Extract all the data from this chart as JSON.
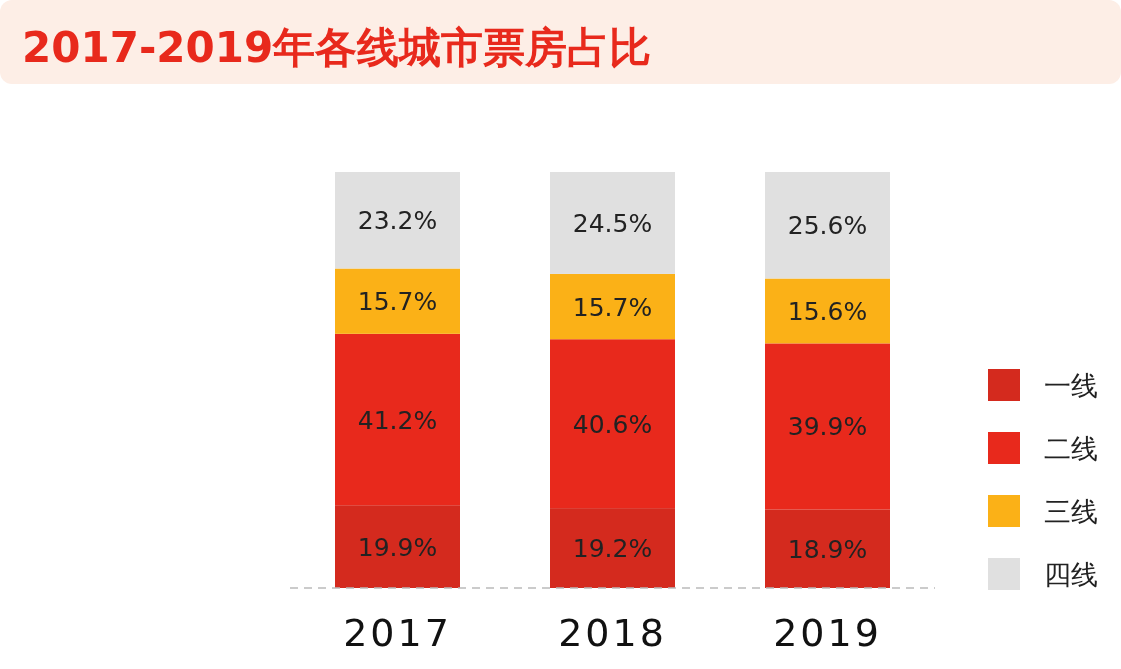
{
  "chart_data": {
    "type": "bar",
    "title": "2017-2019年各线城市票房占比",
    "stacked": true,
    "categories": [
      "2017",
      "2018",
      "2019"
    ],
    "legend": "right",
    "series": [
      {
        "name": "一线",
        "color": "#d42a1e",
        "values": [
          19.9,
          19.2,
          18.9
        ],
        "value_labels": [
          "19.9%",
          "19.2%",
          "18.9%"
        ]
      },
      {
        "name": "二线",
        "color": "#e8291c",
        "values": [
          41.2,
          40.6,
          39.9
        ],
        "value_labels": [
          "41.2%",
          "40.6%",
          "39.9%"
        ]
      },
      {
        "name": "三线",
        "color": "#fbb117",
        "values": [
          15.7,
          15.7,
          15.6
        ],
        "value_labels": [
          "15.7%",
          "15.7%",
          "15.6%"
        ]
      },
      {
        "name": "四线",
        "color": "#e0e0e0",
        "values": [
          23.2,
          24.5,
          25.6
        ],
        "value_labels": [
          "23.2%",
          "24.5%",
          "25.6%"
        ]
      }
    ]
  }
}
